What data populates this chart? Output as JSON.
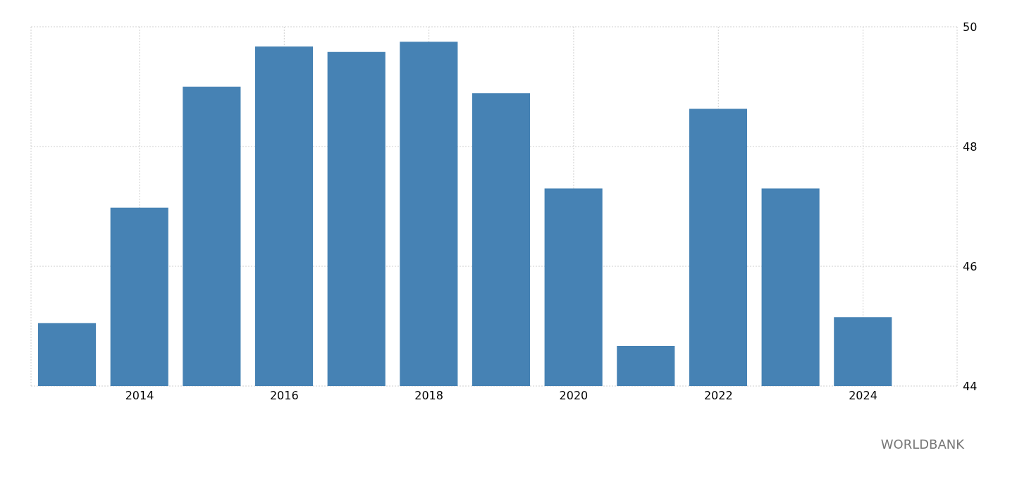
{
  "chart_data": {
    "type": "bar",
    "x": [
      2013,
      2014,
      2015,
      2016,
      2017,
      2018,
      2019,
      2020,
      2021,
      2022,
      2023,
      2024
    ],
    "values": [
      45.05,
      46.98,
      49.0,
      49.67,
      49.58,
      49.75,
      48.89,
      47.3,
      44.67,
      48.63,
      47.3,
      45.15
    ],
    "color": "#4682b4",
    "xlim": [
      2012.5,
      2025.3
    ],
    "xticks": [
      2014,
      2016,
      2018,
      2020,
      2022,
      2024
    ],
    "ylim": [
      44,
      50
    ],
    "yticks": [
      44,
      46,
      48,
      50
    ],
    "grid": true,
    "annotations": [
      "WORLDBANK"
    ]
  }
}
